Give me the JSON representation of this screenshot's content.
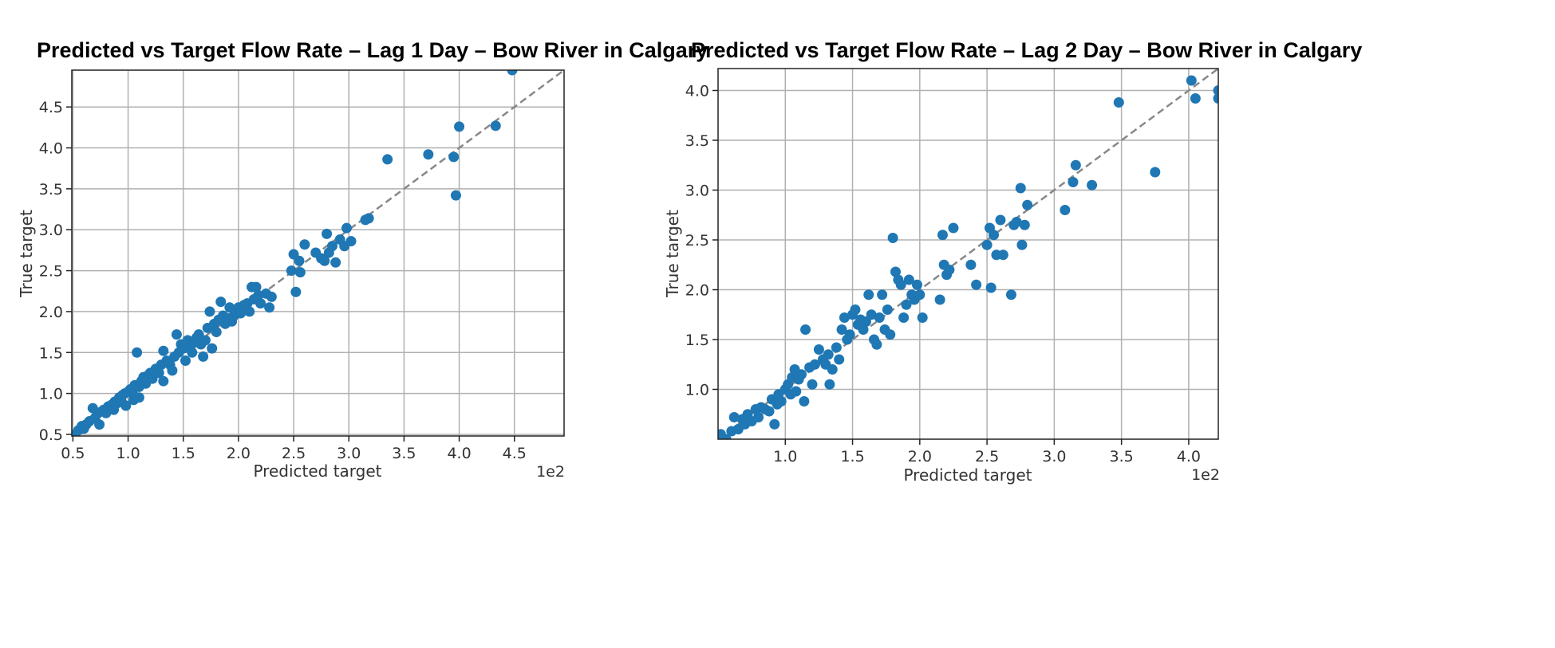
{
  "chart_data": [
    {
      "type": "scatter",
      "title": "Predicted vs Target Flow Rate – Lag 1 Day – Bow River in Calgary",
      "xlabel": "Predicted target",
      "ylabel": "True target",
      "offset_text": "1e2",
      "xlim": [
        0.49,
        4.95
      ],
      "ylim": [
        0.48,
        4.95
      ],
      "xticks": [
        "0.5",
        "1.0",
        "1.5",
        "2.0",
        "2.5",
        "3.0",
        "3.5",
        "4.0",
        "4.5"
      ],
      "yticks": [
        "0.5",
        "1.0",
        "1.5",
        "2.0",
        "2.5",
        "3.0",
        "3.5",
        "4.0",
        "4.5"
      ],
      "grid": true,
      "reference_line": "y = x",
      "colors": {
        "points": "#1f77b4",
        "reference": "#888888",
        "grid": "#b0b0b0"
      },
      "points": [
        [
          0.52,
          0.5
        ],
        [
          0.55,
          0.55
        ],
        [
          0.58,
          0.6
        ],
        [
          0.6,
          0.57
        ],
        [
          0.62,
          0.62
        ],
        [
          0.65,
          0.66
        ],
        [
          0.68,
          0.82
        ],
        [
          0.7,
          0.7
        ],
        [
          0.72,
          0.75
        ],
        [
          0.74,
          0.62
        ],
        [
          0.76,
          0.78
        ],
        [
          0.78,
          0.8
        ],
        [
          0.8,
          0.76
        ],
        [
          0.82,
          0.84
        ],
        [
          0.85,
          0.86
        ],
        [
          0.87,
          0.8
        ],
        [
          0.88,
          0.9
        ],
        [
          0.9,
          0.88
        ],
        [
          0.92,
          0.95
        ],
        [
          0.94,
          0.9
        ],
        [
          0.95,
          0.98
        ],
        [
          0.97,
          1.0
        ],
        [
          0.98,
          0.85
        ],
        [
          1.0,
          1.02
        ],
        [
          1.02,
          1.05
        ],
        [
          1.04,
          1.0
        ],
        [
          1.05,
          0.92
        ],
        [
          1.06,
          1.1
        ],
        [
          1.08,
          1.5
        ],
        [
          1.1,
          1.08
        ],
        [
          1.1,
          0.95
        ],
        [
          1.12,
          1.15
        ],
        [
          1.14,
          1.2
        ],
        [
          1.16,
          1.12
        ],
        [
          1.18,
          1.22
        ],
        [
          1.2,
          1.25
        ],
        [
          1.22,
          1.18
        ],
        [
          1.25,
          1.3
        ],
        [
          1.28,
          1.25
        ],
        [
          1.3,
          1.35
        ],
        [
          1.32,
          1.15
        ],
        [
          1.32,
          1.52
        ],
        [
          1.35,
          1.4
        ],
        [
          1.38,
          1.35
        ],
        [
          1.4,
          1.28
        ],
        [
          1.42,
          1.45
        ],
        [
          1.44,
          1.72
        ],
        [
          1.46,
          1.5
        ],
        [
          1.48,
          1.6
        ],
        [
          1.5,
          1.55
        ],
        [
          1.52,
          1.4
        ],
        [
          1.54,
          1.65
        ],
        [
          1.56,
          1.55
        ],
        [
          1.58,
          1.5
        ],
        [
          1.6,
          1.62
        ],
        [
          1.62,
          1.68
        ],
        [
          1.64,
          1.72
        ],
        [
          1.66,
          1.6
        ],
        [
          1.68,
          1.45
        ],
        [
          1.7,
          1.65
        ],
        [
          1.72,
          1.8
        ],
        [
          1.74,
          2.0
        ],
        [
          1.76,
          1.55
        ],
        [
          1.78,
          1.85
        ],
        [
          1.8,
          1.75
        ],
        [
          1.82,
          1.9
        ],
        [
          1.84,
          2.12
        ],
        [
          1.86,
          1.95
        ],
        [
          1.88,
          1.85
        ],
        [
          1.9,
          1.92
        ],
        [
          1.92,
          2.05
        ],
        [
          1.94,
          1.88
        ],
        [
          1.96,
          1.95
        ],
        [
          1.98,
          2.0
        ],
        [
          2.0,
          2.05
        ],
        [
          2.02,
          1.98
        ],
        [
          2.05,
          2.08
        ],
        [
          2.08,
          2.1
        ],
        [
          2.1,
          2.0
        ],
        [
          2.12,
          2.3
        ],
        [
          2.14,
          2.15
        ],
        [
          2.16,
          2.3
        ],
        [
          2.18,
          2.2
        ],
        [
          2.2,
          2.1
        ],
        [
          2.25,
          2.22
        ],
        [
          2.28,
          2.05
        ],
        [
          2.3,
          2.18
        ],
        [
          2.48,
          2.5
        ],
        [
          2.5,
          2.7
        ],
        [
          2.52,
          2.24
        ],
        [
          2.55,
          2.62
        ],
        [
          2.56,
          2.48
        ],
        [
          2.6,
          2.82
        ],
        [
          2.7,
          2.72
        ],
        [
          2.75,
          2.65
        ],
        [
          2.78,
          2.62
        ],
        [
          2.8,
          2.95
        ],
        [
          2.82,
          2.72
        ],
        [
          2.85,
          2.8
        ],
        [
          2.88,
          2.6
        ],
        [
          2.92,
          2.88
        ],
        [
          2.96,
          2.8
        ],
        [
          2.98,
          3.02
        ],
        [
          3.02,
          2.86
        ],
        [
          3.15,
          3.12
        ],
        [
          3.18,
          3.14
        ],
        [
          3.35,
          3.86
        ],
        [
          3.72,
          3.92
        ],
        [
          3.95,
          3.89
        ],
        [
          3.97,
          3.42
        ],
        [
          4.0,
          4.26
        ],
        [
          4.33,
          4.27
        ],
        [
          4.48,
          4.95
        ]
      ]
    },
    {
      "type": "scatter",
      "title": "Predicted vs Target Flow Rate – Lag 2 Day – Bow River in Calgary",
      "xlabel": "Predicted target",
      "ylabel": "True target",
      "offset_text": "1e2",
      "xlim": [
        0.5,
        4.22
      ],
      "ylim": [
        0.5,
        4.22
      ],
      "xticks": [
        "1.0",
        "1.5",
        "2.0",
        "2.5",
        "3.0",
        "3.5",
        "4.0"
      ],
      "yticks": [
        "1.0",
        "1.5",
        "2.0",
        "2.5",
        "3.0",
        "3.5",
        "4.0"
      ],
      "grid": true,
      "reference_line": "y = x",
      "colors": {
        "points": "#1f77b4",
        "reference": "#888888",
        "grid": "#b0b0b0"
      },
      "points": [
        [
          0.52,
          0.55
        ],
        [
          0.56,
          0.5
        ],
        [
          0.6,
          0.58
        ],
        [
          0.62,
          0.72
        ],
        [
          0.65,
          0.6
        ],
        [
          0.68,
          0.7
        ],
        [
          0.7,
          0.65
        ],
        [
          0.72,
          0.75
        ],
        [
          0.75,
          0.68
        ],
        [
          0.78,
          0.8
        ],
        [
          0.8,
          0.72
        ],
        [
          0.82,
          0.82
        ],
        [
          0.85,
          0.8
        ],
        [
          0.88,
          0.78
        ],
        [
          0.9,
          0.9
        ],
        [
          0.92,
          0.65
        ],
        [
          0.94,
          0.85
        ],
        [
          0.95,
          0.95
        ],
        [
          0.97,
          0.88
        ],
        [
          1.0,
          1.0
        ],
        [
          1.02,
          1.05
        ],
        [
          1.04,
          0.95
        ],
        [
          1.05,
          1.12
        ],
        [
          1.07,
          1.2
        ],
        [
          1.08,
          0.98
        ],
        [
          1.1,
          1.1
        ],
        [
          1.12,
          1.15
        ],
        [
          1.14,
          0.88
        ],
        [
          1.15,
          1.6
        ],
        [
          1.18,
          1.22
        ],
        [
          1.2,
          1.05
        ],
        [
          1.22,
          1.25
        ],
        [
          1.25,
          1.4
        ],
        [
          1.28,
          1.3
        ],
        [
          1.3,
          1.25
        ],
        [
          1.32,
          1.35
        ],
        [
          1.33,
          1.05
        ],
        [
          1.35,
          1.2
        ],
        [
          1.38,
          1.42
        ],
        [
          1.4,
          1.3
        ],
        [
          1.42,
          1.6
        ],
        [
          1.44,
          1.72
        ],
        [
          1.46,
          1.5
        ],
        [
          1.48,
          1.55
        ],
        [
          1.5,
          1.75
        ],
        [
          1.52,
          1.8
        ],
        [
          1.54,
          1.65
        ],
        [
          1.56,
          1.7
        ],
        [
          1.58,
          1.6
        ],
        [
          1.6,
          1.68
        ],
        [
          1.62,
          1.95
        ],
        [
          1.64,
          1.75
        ],
        [
          1.66,
          1.5
        ],
        [
          1.68,
          1.45
        ],
        [
          1.7,
          1.72
        ],
        [
          1.72,
          1.95
        ],
        [
          1.74,
          1.6
        ],
        [
          1.76,
          1.8
        ],
        [
          1.78,
          1.55
        ],
        [
          1.8,
          2.52
        ],
        [
          1.82,
          2.18
        ],
        [
          1.84,
          2.1
        ],
        [
          1.86,
          2.05
        ],
        [
          1.88,
          1.72
        ],
        [
          1.9,
          1.85
        ],
        [
          1.92,
          2.1
        ],
        [
          1.94,
          1.95
        ],
        [
          1.96,
          1.9
        ],
        [
          1.98,
          2.05
        ],
        [
          2.0,
          1.95
        ],
        [
          2.02,
          1.72
        ],
        [
          2.15,
          1.9
        ],
        [
          2.17,
          2.55
        ],
        [
          2.18,
          2.25
        ],
        [
          2.2,
          2.15
        ],
        [
          2.22,
          2.2
        ],
        [
          2.25,
          2.62
        ],
        [
          2.38,
          2.25
        ],
        [
          2.42,
          2.05
        ],
        [
          2.5,
          2.45
        ],
        [
          2.52,
          2.62
        ],
        [
          2.53,
          2.02
        ],
        [
          2.55,
          2.55
        ],
        [
          2.57,
          2.35
        ],
        [
          2.6,
          2.7
        ],
        [
          2.62,
          2.35
        ],
        [
          2.68,
          1.95
        ],
        [
          2.7,
          2.65
        ],
        [
          2.72,
          2.68
        ],
        [
          2.75,
          3.02
        ],
        [
          2.76,
          2.45
        ],
        [
          2.78,
          2.65
        ],
        [
          2.8,
          2.85
        ],
        [
          3.08,
          2.8
        ],
        [
          3.14,
          3.08
        ],
        [
          3.16,
          3.25
        ],
        [
          3.28,
          3.05
        ],
        [
          3.48,
          3.88
        ],
        [
          3.75,
          3.18
        ],
        [
          4.02,
          4.1
        ],
        [
          4.05,
          3.92
        ],
        [
          4.22,
          4.0
        ],
        [
          4.22,
          3.92
        ]
      ]
    }
  ]
}
